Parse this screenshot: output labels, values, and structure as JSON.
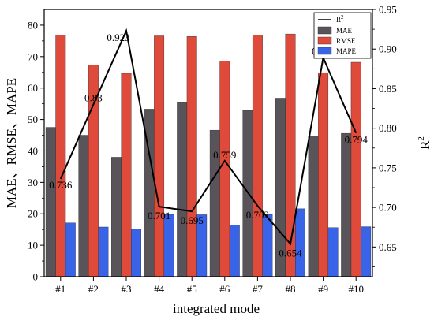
{
  "chart_data": {
    "type": "bar",
    "categories": [
      "#1",
      "#2",
      "#3",
      "#4",
      "#5",
      "#6",
      "#7",
      "#8",
      "#9",
      "#10"
    ],
    "xlabel": "integrated mode",
    "ylabel": "MAE、RMSE、MAPE",
    "ylabel_right": "R",
    "ylabel_right_sup": "2",
    "ylim": [
      0,
      85
    ],
    "yticks": [
      0,
      10,
      20,
      30,
      40,
      50,
      60,
      70,
      80
    ],
    "ylim_right": [
      0.6125,
      0.95
    ],
    "yticks_right": [
      0.65,
      0.7,
      0.75,
      0.8,
      0.85,
      0.9,
      0.95
    ],
    "grid": false,
    "legend_position": "top-right",
    "series": [
      {
        "name": "MAE",
        "color": "#595459",
        "values": [
          47.5,
          45,
          38,
          53.3,
          55.4,
          46.6,
          52.9,
          56.8,
          44.7,
          45.6
        ]
      },
      {
        "name": "RMSE",
        "color": "#e04a3a",
        "values": [
          76.9,
          67.4,
          64.7,
          76.6,
          76.4,
          68.6,
          76.9,
          77.2,
          64.9,
          68.2
        ]
      },
      {
        "name": "MAPE",
        "color": "#3a64e8",
        "values": [
          17.1,
          15.8,
          15.2,
          19.8,
          19.7,
          16.4,
          19.8,
          21.6,
          15.6,
          15.9
        ]
      }
    ],
    "line_series": {
      "name": "R",
      "name_sup": "2",
      "color": "#000000",
      "axis": "right",
      "values": [
        0.736,
        0.83,
        0.923,
        0.701,
        0.695,
        0.759,
        0.702,
        0.654,
        0.889,
        0.794
      ],
      "labels": [
        "0.736",
        "0.83",
        "0.923",
        "0.701",
        "0.695",
        "0.759",
        "0.702",
        "0.654",
        "0.889",
        "0.794"
      ]
    }
  }
}
